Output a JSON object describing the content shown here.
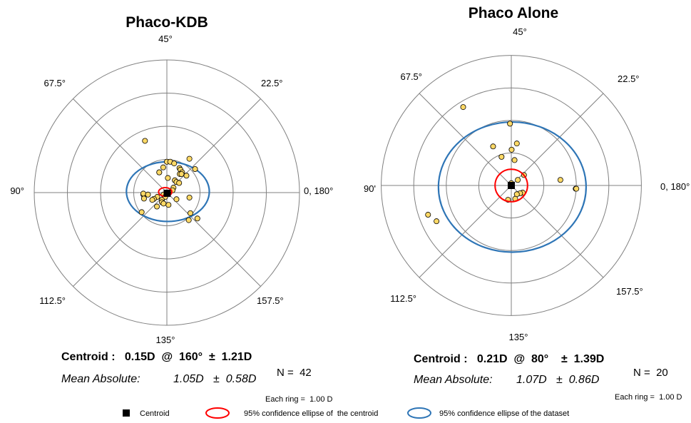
{
  "chart_data": [
    {
      "type": "scatter",
      "title": "Phaco-KDB",
      "angle_labels": {
        "top": "45°",
        "upper_right": "22.5°",
        "right": "0, 180°",
        "lower_right": "157.5°",
        "bottom": "135°",
        "lower_left": "112.5°",
        "left": "90°",
        "upper_left": "67.5°"
      },
      "ring_count": 4,
      "ring_step_D": 1.0,
      "points": [
        {
          "x": -0.66,
          "y": 1.56
        },
        {
          "x": 0.0,
          "y": 0.93
        },
        {
          "x": 0.1,
          "y": 0.93
        },
        {
          "x": -0.11,
          "y": 0.76
        },
        {
          "x": 0.68,
          "y": 1.02
        },
        {
          "x": -0.23,
          "y": 0.61
        },
        {
          "x": -0.23,
          "y": 0.61
        },
        {
          "x": 0.22,
          "y": 0.88
        },
        {
          "x": 0.38,
          "y": 0.74
        },
        {
          "x": 0.85,
          "y": 0.71
        },
        {
          "x": 0.41,
          "y": 0.69
        },
        {
          "x": 0.46,
          "y": 0.61
        },
        {
          "x": 0.39,
          "y": 0.56
        },
        {
          "x": 0.44,
          "y": 0.56
        },
        {
          "x": 0.59,
          "y": 0.51
        },
        {
          "x": 0.03,
          "y": 0.44
        },
        {
          "x": 0.24,
          "y": 0.37
        },
        {
          "x": 0.29,
          "y": 0.32
        },
        {
          "x": 0.37,
          "y": 0.29
        },
        {
          "x": 0.2,
          "y": 0.15
        },
        {
          "x": 0.17,
          "y": 0.07
        },
        {
          "x": 0.05,
          "y": -0.03
        },
        {
          "x": -0.1,
          "y": -0.06
        },
        {
          "x": -0.05,
          "y": -0.13
        },
        {
          "x": -0.71,
          "y": -0.06
        },
        {
          "x": -0.71,
          "y": -0.03
        },
        {
          "x": -0.57,
          "y": -0.06
        },
        {
          "x": 0.68,
          "y": -0.15
        },
        {
          "x": -0.29,
          "y": -0.13
        },
        {
          "x": -0.15,
          "y": -0.22
        },
        {
          "x": -0.39,
          "y": -0.19
        },
        {
          "x": -0.44,
          "y": -0.22
        },
        {
          "x": -0.69,
          "y": -0.18
        },
        {
          "x": 0.29,
          "y": -0.2
        },
        {
          "x": -0.15,
          "y": -0.29
        },
        {
          "x": -0.1,
          "y": -0.33
        },
        {
          "x": -0.3,
          "y": -0.42
        },
        {
          "x": 0.05,
          "y": -0.37
        },
        {
          "x": -0.76,
          "y": -0.59
        },
        {
          "x": 0.71,
          "y": -0.62
        },
        {
          "x": 0.92,
          "y": -0.78
        },
        {
          "x": 0.66,
          "y": -0.83
        }
      ],
      "centroid": {
        "x": 0.01,
        "y": -0.02
      },
      "centroid_ellipse": {
        "cx": -0.05,
        "cy": 0.02,
        "rx": 0.2,
        "ry": 0.13
      },
      "dataset_ellipse": {
        "cx": 0.03,
        "cy": 0.03,
        "rx": 1.25,
        "ry": 0.9
      },
      "centroid_text": "Centroid :   0.15D  @  160°  ±  1.21D",
      "mean_label": "Mean Absolute:",
      "mean_value": "1.05D   ±  0.58D",
      "n_text": "N =  42",
      "ring_note": "Each ring =  1.00 D"
    },
    {
      "type": "scatter",
      "title": "Phaco Alone",
      "angle_labels": {
        "top": "45°",
        "upper_right": "22.5°",
        "right": "0, 180°",
        "lower_right": "157.5°",
        "bottom": "135°",
        "lower_left": "112.5°",
        "left": "90'",
        "upper_left": "67.5°"
      },
      "ring_count": 4,
      "ring_step_D": 1.0,
      "points": [
        {
          "x": -1.48,
          "y": 2.41
        },
        {
          "x": -0.04,
          "y": 1.9
        },
        {
          "x": 0.17,
          "y": 1.29
        },
        {
          "x": -0.56,
          "y": 1.2
        },
        {
          "x": 0.01,
          "y": 1.1
        },
        {
          "x": -0.3,
          "y": 0.88
        },
        {
          "x": 0.1,
          "y": 0.78
        },
        {
          "x": 0.39,
          "y": 0.32
        },
        {
          "x": 0.2,
          "y": 0.17
        },
        {
          "x": 0.0,
          "y": 0.07
        },
        {
          "x": 0.35,
          "y": -0.22
        },
        {
          "x": 0.27,
          "y": -0.24
        },
        {
          "x": 0.17,
          "y": -0.27
        },
        {
          "x": 0.12,
          "y": -0.41
        },
        {
          "x": -0.1,
          "y": -0.44
        },
        {
          "x": 1.51,
          "y": 0.17
        },
        {
          "x": 1.98,
          "y": -0.1
        },
        {
          "x": 2.0,
          "y": -0.1
        },
        {
          "x": -2.3,
          "y": -1.1
        },
        {
          "x": -2.56,
          "y": -0.9
        }
      ],
      "centroid": {
        "x": 0.0,
        "y": 0.0
      },
      "centroid_ellipse": {
        "cx": 0.0,
        "cy": 0.0,
        "rx": 0.5,
        "ry": 0.5
      },
      "dataset_ellipse": {
        "cx": 0.03,
        "cy": -0.05,
        "rx": 2.27,
        "ry": 2.0
      },
      "centroid_text": "Centroid :   0.21D  @  80°    ±  1.39D",
      "mean_label": "Mean Absolute:",
      "mean_value": "1.07D   ±  0.86D",
      "n_text": "N =  20",
      "ring_note": "Each ring =  1.00 D"
    }
  ],
  "legend": {
    "centroid_label": "Centroid",
    "centroid_ellipse_label": "95% confidence ellipse of  the centroid",
    "dataset_ellipse_label": "95% confidence ellipse of the dataset"
  },
  "colors": {
    "point_fill": "#ffd966",
    "point_stroke": "#000000",
    "grid": "#808080",
    "centroid_ellipse": "#ff0000",
    "dataset_ellipse": "#2e75b6",
    "centroid": "#000000"
  }
}
